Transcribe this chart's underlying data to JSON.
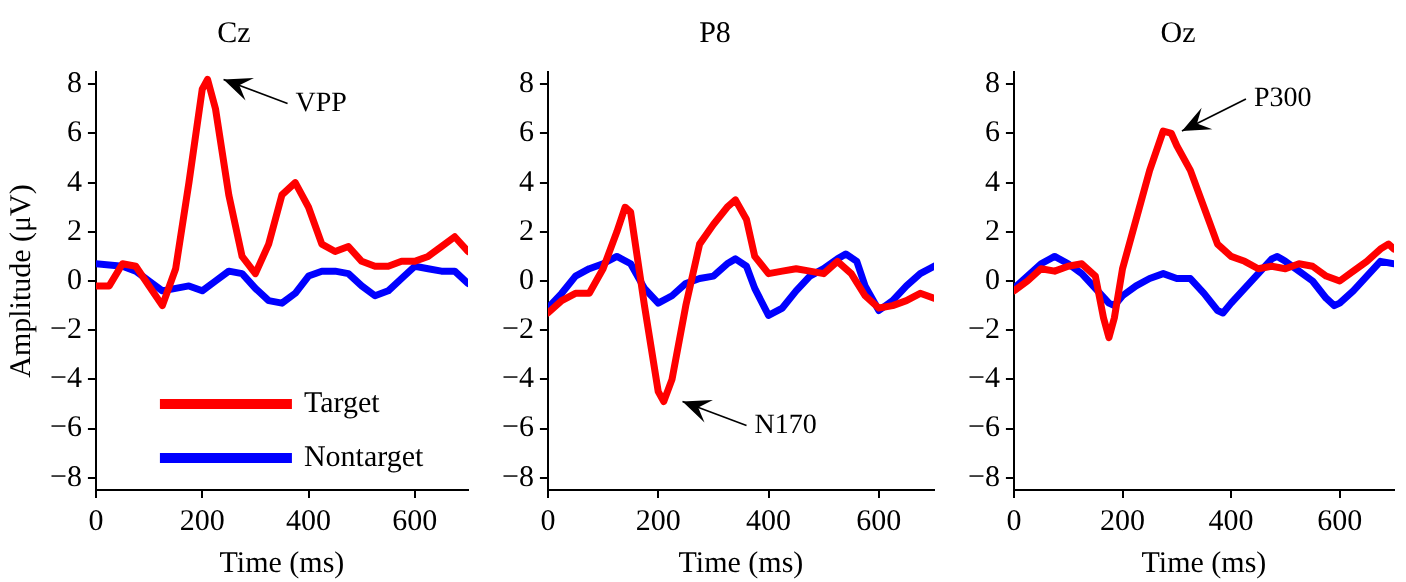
{
  "chart_data": [
    {
      "type": "line",
      "title": "Cz",
      "xlabel": "Time (ms)",
      "ylabel": "Amplitude (μV)",
      "xlim": [
        0,
        700
      ],
      "ylim": [
        -8.5,
        8.5
      ],
      "xticks": [
        0,
        200,
        400,
        600
      ],
      "yticks": [
        {
          "value": -8,
          "label": "−8"
        },
        {
          "value": -6,
          "label": "−6"
        },
        {
          "value": -4,
          "label": "−4"
        },
        {
          "value": -2,
          "label": "−2"
        },
        0,
        2,
        4,
        6,
        8
      ],
      "grid": false,
      "legend": "bottom",
      "line_style": "solid",
      "marker": "none",
      "annotations": [
        {
          "text": "VPP",
          "x": 210,
          "y": 8.2
        }
      ],
      "series": [
        {
          "name": "Target",
          "color": "#ff0000",
          "x": [
            0,
            25,
            50,
            75,
            100,
            125,
            150,
            175,
            200,
            210,
            225,
            250,
            275,
            300,
            325,
            350,
            375,
            400,
            425,
            450,
            475,
            500,
            525,
            550,
            575,
            600,
            625,
            650,
            675,
            700
          ],
          "values": [
            -0.2,
            -0.2,
            0.7,
            0.6,
            -0.2,
            -1.0,
            0.5,
            4,
            7.8,
            8.2,
            7,
            3.5,
            1,
            0.3,
            1.5,
            3.5,
            4,
            3,
            1.5,
            1.2,
            1.4,
            0.8,
            0.6,
            0.6,
            0.8,
            0.8,
            1,
            1.4,
            1.8,
            1.2
          ]
        },
        {
          "name": "Nontarget",
          "color": "#0000ff",
          "x": [
            0,
            50,
            75,
            100,
            125,
            150,
            175,
            200,
            225,
            250,
            275,
            300,
            325,
            350,
            375,
            400,
            425,
            450,
            475,
            500,
            525,
            550,
            575,
            600,
            625,
            650,
            675,
            700
          ],
          "values": [
            0.7,
            0.6,
            0.4,
            0,
            -0.4,
            -0.3,
            -0.2,
            -0.4,
            0,
            0.4,
            0.3,
            -0.3,
            -0.8,
            -0.9,
            -0.5,
            0.2,
            0.4,
            0.4,
            0.3,
            -0.2,
            -0.6,
            -0.4,
            0.1,
            0.6,
            0.5,
            0.4,
            0.4,
            -0.1
          ]
        }
      ]
    },
    {
      "type": "line",
      "title": "P8",
      "xlabel": "Time (ms)",
      "xlim": [
        0,
        700
      ],
      "ylim": [
        -8.5,
        8.5
      ],
      "xticks": [
        0,
        200,
        400,
        600
      ],
      "yticks": [
        {
          "value": -8,
          "label": "−8"
        },
        {
          "value": -6,
          "label": "−6"
        },
        {
          "value": -4,
          "label": "−4"
        },
        {
          "value": -2,
          "label": "−2"
        },
        0,
        2,
        4,
        6,
        8
      ],
      "grid": false,
      "line_style": "solid",
      "marker": "none",
      "annotations": [
        {
          "text": "N170",
          "x": 215,
          "y": -4.9
        }
      ],
      "series": [
        {
          "color": "#ff0000",
          "x": [
            0,
            25,
            50,
            75,
            100,
            125,
            140,
            150,
            175,
            200,
            210,
            225,
            250,
            275,
            300,
            325,
            340,
            360,
            375,
            400,
            425,
            450,
            475,
            500,
            525,
            550,
            575,
            600,
            625,
            650,
            675,
            700
          ],
          "values": [
            -1.3,
            -0.8,
            -0.5,
            -0.5,
            0.5,
            2,
            3,
            2.8,
            -1,
            -4.5,
            -4.9,
            -4,
            -1,
            1.5,
            2.3,
            3,
            3.3,
            2.5,
            1,
            0.3,
            0.4,
            0.5,
            0.4,
            0.3,
            0.8,
            0.3,
            -0.6,
            -1.1,
            -1,
            -0.8,
            -0.5,
            -0.7
          ]
        },
        {
          "color": "#0000ff",
          "x": [
            0,
            25,
            50,
            75,
            100,
            125,
            150,
            175,
            200,
            225,
            250,
            275,
            300,
            325,
            340,
            360,
            375,
            400,
            425,
            450,
            475,
            500,
            525,
            540,
            560,
            575,
            600,
            625,
            650,
            675,
            700
          ],
          "values": [
            -1.1,
            -0.5,
            0.2,
            0.5,
            0.7,
            1,
            0.7,
            -0.3,
            -0.9,
            -0.6,
            -0.1,
            0.1,
            0.2,
            0.7,
            0.9,
            0.6,
            -0.3,
            -1.4,
            -1.1,
            -0.4,
            0.2,
            0.5,
            0.9,
            1.1,
            0.8,
            -0.2,
            -1.2,
            -0.8,
            -0.2,
            0.3,
            0.6
          ]
        }
      ]
    },
    {
      "type": "line",
      "title": "Oz",
      "xlabel": "Time (ms)",
      "xlim": [
        0,
        700
      ],
      "ylim": [
        -8.5,
        8.5
      ],
      "xticks": [
        0,
        200,
        400,
        600
      ],
      "yticks": [
        {
          "value": -8,
          "label": "−8"
        },
        {
          "value": -6,
          "label": "−6"
        },
        {
          "value": -4,
          "label": "−4"
        },
        {
          "value": -2,
          "label": "−2"
        },
        0,
        2,
        4,
        6,
        8
      ],
      "grid": false,
      "line_style": "solid",
      "marker": "none",
      "annotations": [
        {
          "text": "P300",
          "x": 280,
          "y": 6.1
        }
      ],
      "series": [
        {
          "color": "#ff0000",
          "x": [
            0,
            25,
            50,
            75,
            100,
            125,
            150,
            165,
            175,
            185,
            200,
            225,
            250,
            275,
            290,
            300,
            325,
            350,
            375,
            400,
            425,
            450,
            475,
            500,
            525,
            550,
            575,
            600,
            625,
            650,
            675,
            690,
            700
          ],
          "values": [
            -0.4,
            0,
            0.5,
            0.4,
            0.6,
            0.7,
            0.2,
            -1.5,
            -2.3,
            -1.5,
            0.5,
            2.5,
            4.5,
            6.1,
            6,
            5.5,
            4.5,
            3,
            1.5,
            1,
            0.8,
            0.5,
            0.6,
            0.5,
            0.7,
            0.6,
            0.2,
            0,
            0.4,
            0.8,
            1.3,
            1.5,
            1.3
          ]
        },
        {
          "color": "#0000ff",
          "x": [
            0,
            25,
            50,
            75,
            100,
            125,
            150,
            175,
            185,
            200,
            225,
            250,
            275,
            300,
            325,
            350,
            375,
            385,
            400,
            425,
            450,
            475,
            485,
            500,
            525,
            550,
            575,
            590,
            600,
            625,
            650,
            675,
            700
          ],
          "values": [
            -0.3,
            0.2,
            0.7,
            1,
            0.7,
            0.3,
            -0.3,
            -0.9,
            -1,
            -0.6,
            -0.2,
            0.1,
            0.3,
            0.1,
            0.1,
            -0.5,
            -1.2,
            -1.3,
            -0.9,
            -0.3,
            0.3,
            0.9,
            1,
            0.8,
            0.4,
            0,
            -0.7,
            -1,
            -0.9,
            -0.4,
            0.2,
            0.8,
            0.7
          ]
        }
      ]
    }
  ]
}
